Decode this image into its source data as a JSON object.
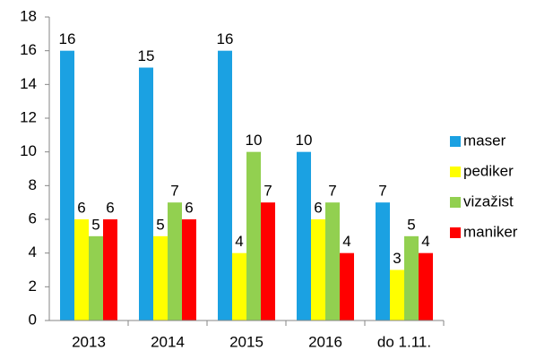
{
  "chart_data": {
    "type": "bar",
    "categories": [
      "2013",
      "2014",
      "2015",
      "2016",
      "do 1.11."
    ],
    "series": [
      {
        "name": "maser",
        "color": "#1ba1e2",
        "values": [
          16,
          15,
          16,
          10,
          7
        ]
      },
      {
        "name": "pediker",
        "color": "#ffff00",
        "values": [
          6,
          5,
          4,
          6,
          3
        ]
      },
      {
        "name": "vizažist",
        "color": "#92d050",
        "values": [
          5,
          7,
          10,
          7,
          5
        ]
      },
      {
        "name": "maniker",
        "color": "#ff0000",
        "values": [
          6,
          6,
          7,
          4,
          4
        ]
      }
    ],
    "ylim": [
      0,
      18
    ],
    "yticks": [
      0,
      2,
      4,
      6,
      8,
      10,
      12,
      14,
      16,
      18
    ],
    "grid": false,
    "legend": "right"
  }
}
